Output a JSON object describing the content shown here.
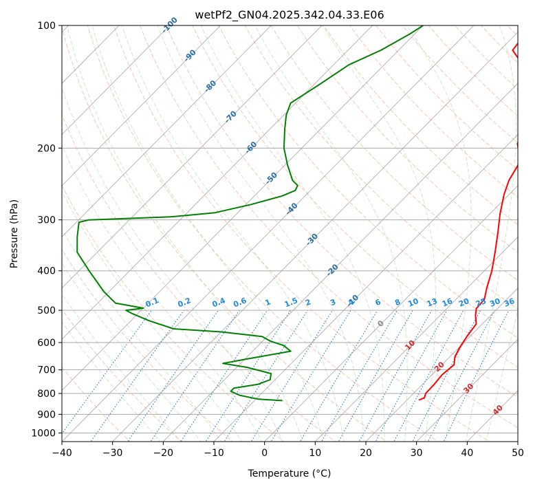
{
  "chart_data": {
    "type": "line",
    "subtype": "skew-T log-P diagram",
    "title": "wetPf2_GN04.2025.342.04.33.E06",
    "xlabel": "Temperature (°C)",
    "ylabel": "Pressure (hPa)",
    "xlim": [
      -40,
      50
    ],
    "ylim": [
      1050,
      100
    ],
    "y_scale": "log",
    "x_ticks": [
      -40,
      -30,
      -20,
      -10,
      0,
      10,
      20,
      30,
      40,
      50
    ],
    "y_ticks": [
      100,
      200,
      300,
      400,
      500,
      600,
      700,
      800,
      900,
      1000
    ],
    "isotherm_labels": [
      "-100",
      "-90",
      "-80",
      "-70",
      "-60",
      "-50",
      "-40",
      "-30",
      "-20",
      "-10",
      "0",
      "10",
      "20",
      "30",
      "40"
    ],
    "mixing_ratio_labels": [
      "0.1",
      "0.2",
      "0.4",
      "0.6",
      "1",
      "1.5",
      "2",
      "3",
      "4",
      "6",
      "8",
      "10",
      "13",
      "16",
      "20",
      "25",
      "30",
      "36"
    ],
    "series": [
      {
        "name": "temperature",
        "color": "#ff0000",
        "points": [
          {
            "p": 830,
            "t": 22.3
          },
          {
            "p": 820,
            "t": 23.0
          },
          {
            "p": 800,
            "t": 22.4
          },
          {
            "p": 760,
            "t": 22.3
          },
          {
            "p": 720,
            "t": 22.0
          },
          {
            "p": 680,
            "t": 22.4
          },
          {
            "p": 650,
            "t": 21.0
          },
          {
            "p": 620,
            "t": 20.2
          },
          {
            "p": 580,
            "t": 19.4
          },
          {
            "p": 540,
            "t": 18.8
          },
          {
            "p": 515,
            "t": 17.0
          },
          {
            "p": 495,
            "t": 15.8
          },
          {
            "p": 470,
            "t": 15.6
          },
          {
            "p": 440,
            "t": 13.8
          },
          {
            "p": 400,
            "t": 11.5
          },
          {
            "p": 360,
            "t": 8.5
          },
          {
            "p": 320,
            "t": 5.0
          },
          {
            "p": 290,
            "t": 2.0
          },
          {
            "p": 260,
            "t": -1.0
          },
          {
            "p": 240,
            "t": -2.8
          },
          {
            "p": 220,
            "t": -4.0
          },
          {
            "p": 205,
            "t": -6.3
          },
          {
            "p": 195,
            "t": -8.3
          },
          {
            "p": 180,
            "t": -9.6
          },
          {
            "p": 165,
            "t": -12.0
          },
          {
            "p": 150,
            "t": -15.0
          },
          {
            "p": 135,
            "t": -19.5
          },
          {
            "p": 120,
            "t": -25.0
          },
          {
            "p": 115,
            "t": -27.5
          },
          {
            "p": 108,
            "t": -28.0
          },
          {
            "p": 100,
            "t": -28.0
          }
        ]
      },
      {
        "name": "dewpoint",
        "color": "#008000",
        "points": [
          {
            "p": 833,
            "t": -4.5
          },
          {
            "p": 826,
            "t": -9.5
          },
          {
            "p": 808,
            "t": -14.0
          },
          {
            "p": 790,
            "t": -16.5
          },
          {
            "p": 776,
            "t": -16.5
          },
          {
            "p": 760,
            "t": -12.5
          },
          {
            "p": 740,
            "t": -11.0
          },
          {
            "p": 715,
            "t": -12.0
          },
          {
            "p": 690,
            "t": -18.0
          },
          {
            "p": 675,
            "t": -23.5
          },
          {
            "p": 660,
            "t": -20.0
          },
          {
            "p": 630,
            "t": -12.5
          },
          {
            "p": 610,
            "t": -15.0
          },
          {
            "p": 595,
            "t": -18.5
          },
          {
            "p": 580,
            "t": -21.0
          },
          {
            "p": 565,
            "t": -30.0
          },
          {
            "p": 555,
            "t": -40.0
          },
          {
            "p": 530,
            "t": -46.5
          },
          {
            "p": 510,
            "t": -51.0
          },
          {
            "p": 500,
            "t": -53.0
          },
          {
            "p": 494,
            "t": -50.0
          },
          {
            "p": 480,
            "t": -56.5
          },
          {
            "p": 450,
            "t": -61.0
          },
          {
            "p": 400,
            "t": -68.0
          },
          {
            "p": 360,
            "t": -74.0
          },
          {
            "p": 330,
            "t": -77.0
          },
          {
            "p": 304,
            "t": -79.5
          },
          {
            "p": 300,
            "t": -78.0
          },
          {
            "p": 295,
            "t": -62.5
          },
          {
            "p": 288,
            "t": -54.5
          },
          {
            "p": 275,
            "t": -49.0
          },
          {
            "p": 262,
            "t": -44.5
          },
          {
            "p": 254,
            "t": -43.0
          },
          {
            "p": 247,
            "t": -43.5
          },
          {
            "p": 240,
            "t": -45.5
          },
          {
            "p": 220,
            "t": -49.5
          },
          {
            "p": 200,
            "t": -53.5
          },
          {
            "p": 180,
            "t": -57.0
          },
          {
            "p": 166,
            "t": -59.5
          },
          {
            "p": 155,
            "t": -61.0
          },
          {
            "p": 140,
            "t": -59.0
          },
          {
            "p": 125,
            "t": -57.0
          },
          {
            "p": 115,
            "t": -53.5
          },
          {
            "p": 105,
            "t": -51.0
          },
          {
            "p": 100,
            "t": -50.0
          }
        ]
      }
    ]
  }
}
